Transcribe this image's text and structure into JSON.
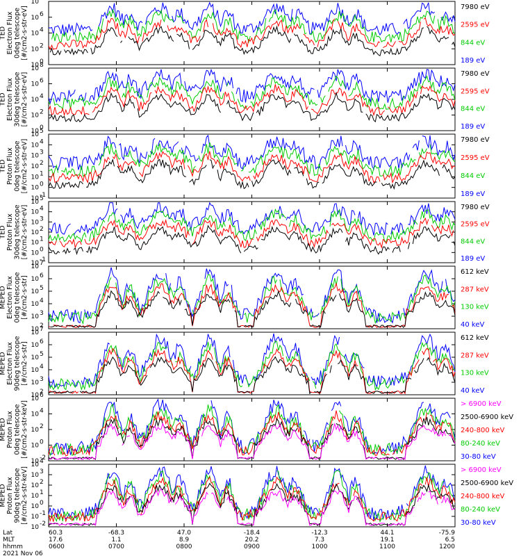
{
  "chart_data": [
    {
      "type": "line",
      "instrument": "TED",
      "ylabel": [
        "TED",
        "Electron Flux",
        "0deg telescope",
        "[#/cm2-s-str-eV]"
      ],
      "y_exponents": [
        0,
        2,
        4,
        6,
        8
      ],
      "log_scale": true,
      "legend_placement": "right",
      "series": [
        {
          "name": "7980 eV",
          "color": "#000000"
        },
        {
          "name": "2595 eV",
          "color": "#ff0000"
        },
        {
          "name": "844 eV",
          "color": "#00cc00"
        },
        {
          "name": "189 eV",
          "color": "#0000ff"
        }
      ]
    },
    {
      "type": "line",
      "instrument": "TED",
      "ylabel": [
        "TED",
        "Electron Flux",
        "30deg telescope",
        "[#/cm2-s-str-eV]"
      ],
      "y_exponents": [
        0,
        2,
        4,
        6,
        8
      ],
      "log_scale": true,
      "legend_placement": "right",
      "series": [
        {
          "name": "7980 eV",
          "color": "#000000"
        },
        {
          "name": "2595 eV",
          "color": "#ff0000"
        },
        {
          "name": "844 eV",
          "color": "#00cc00"
        },
        {
          "name": "189 eV",
          "color": "#0000ff"
        }
      ]
    },
    {
      "type": "line",
      "instrument": "TED",
      "ylabel": [
        "TED",
        "Proton Flux",
        "0deg telescope",
        "[#/cm2-s-str-eV]"
      ],
      "y_exponents": [
        -1,
        0,
        1,
        2,
        3,
        4,
        5
      ],
      "log_scale": true,
      "legend_placement": "right",
      "series": [
        {
          "name": "7980 eV",
          "color": "#000000"
        },
        {
          "name": "2595 eV",
          "color": "#ff0000"
        },
        {
          "name": "844 eV",
          "color": "#00cc00"
        },
        {
          "name": "189 eV",
          "color": "#0000ff"
        }
      ]
    },
    {
      "type": "line",
      "instrument": "TED",
      "ylabel": [
        "TED",
        "Proton Flux",
        "30deg telescope",
        "[#/cm2-s-str-eV]"
      ],
      "y_exponents": [
        -1,
        0,
        1,
        2,
        3,
        4,
        5
      ],
      "log_scale": true,
      "legend_placement": "right",
      "series": [
        {
          "name": "7980 eV",
          "color": "#000000"
        },
        {
          "name": "2595 eV",
          "color": "#ff0000"
        },
        {
          "name": "844 eV",
          "color": "#00cc00"
        },
        {
          "name": "189 eV",
          "color": "#0000ff"
        }
      ]
    },
    {
      "type": "line",
      "instrument": "MEPED",
      "ylabel": [
        "MEPED",
        "Electron Flux",
        "0deg telescope",
        "[#/cm2-s-str]"
      ],
      "y_exponents": [
        2,
        3,
        4,
        5,
        6,
        7
      ],
      "log_scale": true,
      "legend_placement": "right",
      "series": [
        {
          "name": "612 keV",
          "color": "#000000"
        },
        {
          "name": "287 keV",
          "color": "#ff0000"
        },
        {
          "name": "130 keV",
          "color": "#00cc00"
        },
        {
          "name": "40 keV",
          "color": "#0000ff"
        }
      ]
    },
    {
      "type": "line",
      "instrument": "MEPED",
      "ylabel": [
        "MEPED",
        "Electron Flux",
        "90deg telescope",
        "[#/cm2-s-str]"
      ],
      "y_exponents": [
        2,
        3,
        4,
        5,
        6,
        7
      ],
      "log_scale": true,
      "legend_placement": "right",
      "series": [
        {
          "name": "612 keV",
          "color": "#000000"
        },
        {
          "name": "287 keV",
          "color": "#ff0000"
        },
        {
          "name": "130 keV",
          "color": "#00cc00"
        },
        {
          "name": "40 keV",
          "color": "#0000ff"
        }
      ]
    },
    {
      "type": "line",
      "instrument": "MEPED",
      "ylabel": [
        "MEPED",
        "Proton Flux",
        "0deg telescope",
        "[#/cm2-s-str-keV]"
      ],
      "y_exponents": [
        -2,
        0,
        2,
        4,
        6
      ],
      "log_scale": true,
      "legend_placement": "right",
      "series": [
        {
          "name": "> 6900 keV",
          "color": "#ff00ff"
        },
        {
          "name": "2500-6900 keV",
          "color": "#000000"
        },
        {
          "name": "240-800 keV",
          "color": "#ff0000"
        },
        {
          "name": "80-240 keV",
          "color": "#00cc00"
        },
        {
          "name": "30-80 keV",
          "color": "#0000ff"
        }
      ]
    },
    {
      "type": "line",
      "instrument": "MEPED",
      "ylabel": [
        "MEPED",
        "Proton Flux",
        "90deg telescope",
        "[#/cm2-s-str-keV]"
      ],
      "y_exponents": [
        -2,
        -1,
        0,
        1,
        2,
        3,
        4
      ],
      "log_scale": true,
      "legend_placement": "right",
      "series": [
        {
          "name": "> 6900 keV",
          "color": "#ff00ff"
        },
        {
          "name": "2500-6900 keV",
          "color": "#000000"
        },
        {
          "name": "240-800 keV",
          "color": "#ff0000"
        },
        {
          "name": "80-240 keV",
          "color": "#00cc00"
        },
        {
          "name": "30-80 keV",
          "color": "#0000ff"
        }
      ]
    }
  ],
  "x_axis": {
    "row_labels": [
      "Lat",
      "MLT",
      "hhmm"
    ],
    "ticks": [
      {
        "lat": "60.3",
        "mlt": "17.6",
        "hhmm": "0600"
      },
      {
        "lat": "-68.3",
        "mlt": "1.1",
        "hhmm": "0700"
      },
      {
        "lat": "47.0",
        "mlt": "8.9",
        "hhmm": "0800"
      },
      {
        "lat": "-18.4",
        "mlt": "20.2",
        "hhmm": "0900"
      },
      {
        "lat": "-12.3",
        "mlt": "7.3",
        "hhmm": "1000"
      },
      {
        "lat": "44.1",
        "mlt": "19.1",
        "hhmm": "1100"
      },
      {
        "lat": "-75.9",
        "mlt": "6.5",
        "hhmm": "1200"
      }
    ],
    "date": "2021 Nov 06"
  },
  "passes": [
    0.155,
    0.275,
    0.395,
    0.56,
    0.71,
    0.93
  ]
}
